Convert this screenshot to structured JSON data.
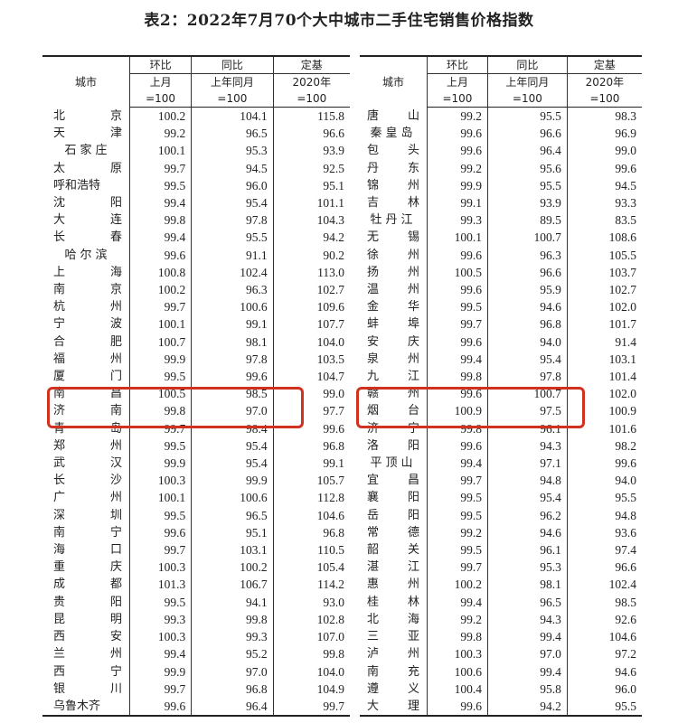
{
  "title": "表2：2022年7月70个大中城市二手住宅销售价格指数",
  "header": {
    "city": "城市",
    "col1": "环比",
    "col1_sub": "上月=100",
    "col2": "同比",
    "col2_sub": "上年同月=100",
    "col3": "定基",
    "col3_sub": "2020年=100"
  },
  "highlight_color": "#d0321f",
  "highlighted_cities": [
    "济南",
    "青岛",
    "烟台",
    "济宁"
  ],
  "left_rows": [
    [
      "北京",
      "100.2",
      "104.1",
      "115.8"
    ],
    [
      "天津",
      "99.2",
      "96.5",
      "96.6"
    ],
    [
      "石家庄",
      "100.1",
      "95.3",
      "93.9"
    ],
    [
      "太原",
      "99.7",
      "94.5",
      "92.5"
    ],
    [
      "呼和浩特",
      "99.5",
      "96.0",
      "95.1"
    ],
    [
      "沈阳",
      "99.4",
      "95.4",
      "101.1"
    ],
    [
      "大连",
      "99.8",
      "97.8",
      "104.3"
    ],
    [
      "长春",
      "99.4",
      "95.5",
      "94.2"
    ],
    [
      "哈尔滨",
      "99.6",
      "91.1",
      "90.2"
    ],
    [
      "上海",
      "100.8",
      "102.4",
      "113.0"
    ],
    [
      "南京",
      "100.2",
      "96.3",
      "102.7"
    ],
    [
      "杭州",
      "99.7",
      "100.6",
      "109.6"
    ],
    [
      "宁波",
      "100.1",
      "99.1",
      "107.7"
    ],
    [
      "合肥",
      "100.7",
      "98.1",
      "104.0"
    ],
    [
      "福州",
      "99.9",
      "97.8",
      "103.5"
    ],
    [
      "厦门",
      "99.5",
      "99.6",
      "104.7"
    ],
    [
      "南昌",
      "100.5",
      "98.5",
      "99.0"
    ],
    [
      "济南",
      "99.8",
      "97.0",
      "97.7"
    ],
    [
      "青岛",
      "99.7",
      "98.4",
      "99.6"
    ],
    [
      "郑州",
      "99.5",
      "95.4",
      "96.8"
    ],
    [
      "武汉",
      "99.9",
      "95.4",
      "99.1"
    ],
    [
      "长沙",
      "100.3",
      "99.9",
      "105.7"
    ],
    [
      "广州",
      "100.1",
      "100.6",
      "112.8"
    ],
    [
      "深圳",
      "99.5",
      "96.5",
      "104.6"
    ],
    [
      "南宁",
      "99.6",
      "95.1",
      "96.8"
    ],
    [
      "海口",
      "99.7",
      "103.1",
      "110.5"
    ],
    [
      "重庆",
      "100.3",
      "100.2",
      "105.4"
    ],
    [
      "成都",
      "101.3",
      "106.7",
      "114.2"
    ],
    [
      "贵阳",
      "99.5",
      "94.1",
      "93.0"
    ],
    [
      "昆明",
      "99.3",
      "99.8",
      "102.8"
    ],
    [
      "西安",
      "100.3",
      "99.3",
      "107.0"
    ],
    [
      "兰州",
      "99.4",
      "95.2",
      "99.8"
    ],
    [
      "西宁",
      "99.9",
      "97.0",
      "104.0"
    ],
    [
      "银川",
      "99.7",
      "96.8",
      "104.9"
    ],
    [
      "乌鲁木齐",
      "99.6",
      "96.4",
      "99.7"
    ]
  ],
  "right_rows": [
    [
      "唐山",
      "99.2",
      "95.5",
      "98.3"
    ],
    [
      "秦皇岛",
      "99.6",
      "96.6",
      "96.9"
    ],
    [
      "包头",
      "99.6",
      "96.4",
      "99.0"
    ],
    [
      "丹东",
      "99.2",
      "95.6",
      "99.6"
    ],
    [
      "锦州",
      "99.9",
      "95.5",
      "94.5"
    ],
    [
      "吉林",
      "99.1",
      "93.9",
      "93.3"
    ],
    [
      "牡丹江",
      "99.3",
      "89.5",
      "83.5"
    ],
    [
      "无锡",
      "100.1",
      "100.7",
      "108.6"
    ],
    [
      "徐州",
      "99.6",
      "96.3",
      "105.5"
    ],
    [
      "扬州",
      "100.5",
      "96.6",
      "103.7"
    ],
    [
      "温州",
      "99.6",
      "95.9",
      "102.7"
    ],
    [
      "金华",
      "99.5",
      "94.6",
      "102.0"
    ],
    [
      "蚌埠",
      "99.7",
      "96.8",
      "101.7"
    ],
    [
      "安庆",
      "99.6",
      "94.0",
      "91.4"
    ],
    [
      "泉州",
      "99.4",
      "95.4",
      "103.1"
    ],
    [
      "九江",
      "99.8",
      "97.8",
      "101.4"
    ],
    [
      "赣州",
      "99.6",
      "100.7",
      "102.0"
    ],
    [
      "烟台",
      "100.9",
      "97.5",
      "100.9"
    ],
    [
      "济宁",
      "99.8",
      "96.1",
      "101.6"
    ],
    [
      "洛阳",
      "99.6",
      "94.3",
      "98.2"
    ],
    [
      "平顶山",
      "99.4",
      "97.1",
      "99.6"
    ],
    [
      "宜昌",
      "99.7",
      "94.8",
      "94.0"
    ],
    [
      "襄阳",
      "99.5",
      "95.4",
      "95.5"
    ],
    [
      "岳阳",
      "99.5",
      "96.2",
      "94.8"
    ],
    [
      "常德",
      "99.2",
      "94.6",
      "93.6"
    ],
    [
      "韶关",
      "99.5",
      "96.1",
      "97.4"
    ],
    [
      "湛江",
      "99.7",
      "95.3",
      "96.6"
    ],
    [
      "惠州",
      "100.2",
      "98.1",
      "102.4"
    ],
    [
      "桂林",
      "99.4",
      "96.5",
      "98.5"
    ],
    [
      "北海",
      "99.2",
      "94.3",
      "92.6"
    ],
    [
      "三亚",
      "99.8",
      "99.4",
      "104.6"
    ],
    [
      "泸州",
      "100.3",
      "97.0",
      "97.2"
    ],
    [
      "南充",
      "100.6",
      "99.4",
      "94.6"
    ],
    [
      "遵义",
      "100.4",
      "95.8",
      "96.0"
    ],
    [
      "大理",
      "99.6",
      "94.2",
      "95.5"
    ]
  ]
}
